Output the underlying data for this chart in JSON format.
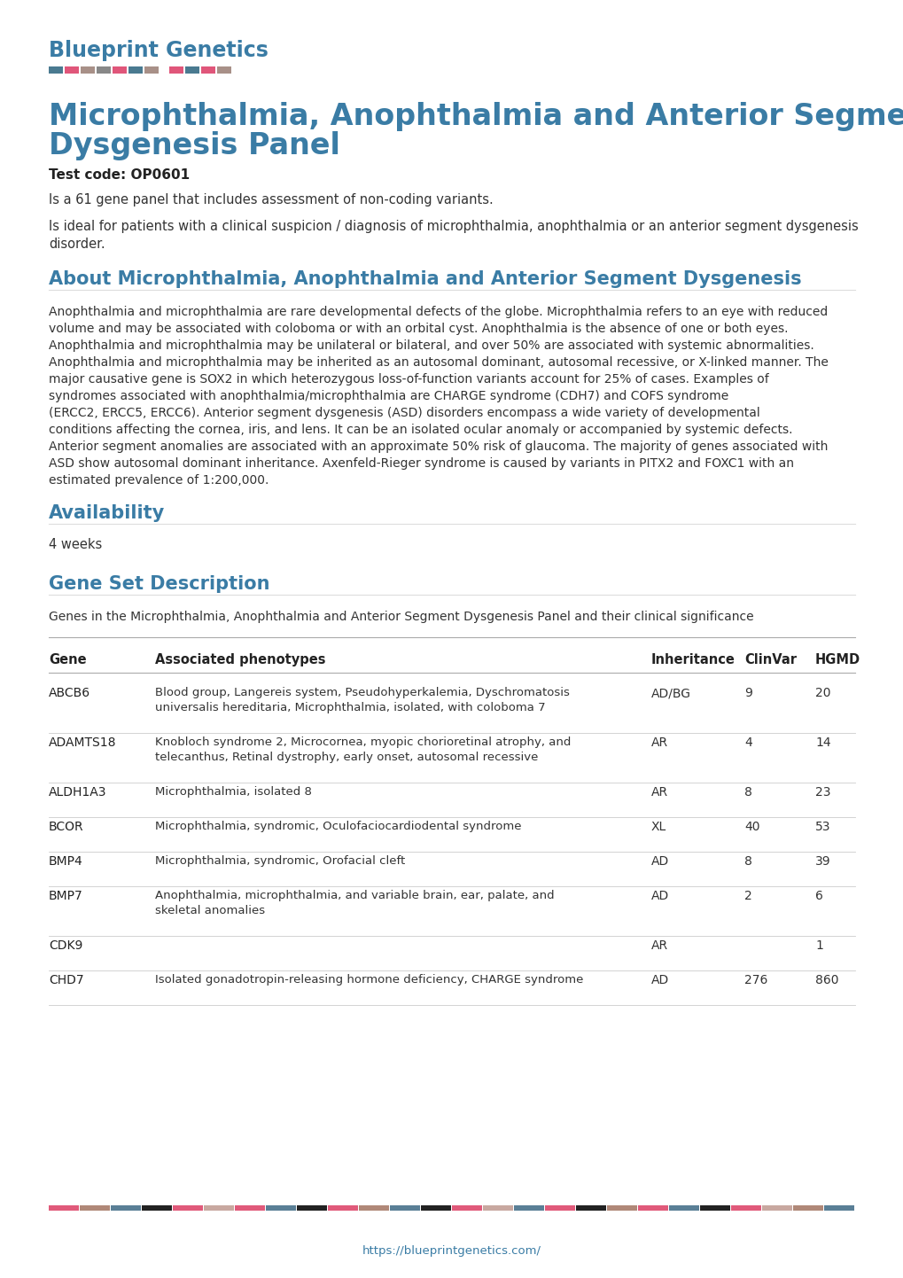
{
  "title_line1": "Microphthalmia, Anophthalmia and Anterior Segment",
  "title_line2": "Dysgenesis Panel",
  "brand": "Blueprint Genetics",
  "brand_color": "#3a7ca5",
  "test_code_label": "Test code: OP0601",
  "desc1": "Is a 61 gene panel that includes assessment of non-coding variants.",
  "desc2a": "Is ideal for patients with a clinical suspicion / diagnosis of microphthalmia, anophthalmia or an anterior segment dysgenesis",
  "desc2b": "disorder.",
  "section1_title": "About Microphthalmia, Anophthalmia and Anterior Segment Dysgenesis",
  "section1_lines": [
    "Anophthalmia and microphthalmia are rare developmental defects of the globe. Microphthalmia refers to an eye with reduced",
    "volume and may be associated with coloboma or with an orbital cyst. Anophthalmia is the absence of one or both eyes.",
    "Anophthalmia and microphthalmia may be unilateral or bilateral, and over 50% are associated with systemic abnormalities.",
    "Anophthalmia and microphthalmia may be inherited as an autosomal dominant, autosomal recessive, or X-linked manner. The",
    "major causative gene is SOX2 in which heterozygous loss-of-function variants account for 25% of cases. Examples of",
    "syndromes associated with anophthalmia/microphthalmia are CHARGE syndrome (CDH7) and COFS syndrome",
    "(ERCC2, ERCC5, ERCC6). Anterior segment dysgenesis (ASD) disorders encompass a wide variety of developmental",
    "conditions affecting the cornea, iris, and lens. It can be an isolated ocular anomaly or accompanied by systemic defects.",
    "Anterior segment anomalies are associated with an approximate 50% risk of glaucoma. The majority of genes associated with",
    "ASD show autosomal dominant inheritance. Axenfeld-Rieger syndrome is caused by variants in PITX2 and FOXC1 with an",
    "estimated prevalence of 1:200,000."
  ],
  "section2_title": "Availability",
  "section2_body": "4 weeks",
  "section3_title": "Gene Set Description",
  "table_intro": "Genes in the Microphthalmia, Anophthalmia and Anterior Segment Dysgenesis Panel and their clinical significance",
  "table_headers": [
    "Gene",
    "Associated phenotypes",
    "Inheritance",
    "ClinVar",
    "HGMD"
  ],
  "table_rows": [
    [
      "ABCB6",
      [
        "Blood group, Langereis system, Pseudohyperkalemia, Dyschromatosis",
        "universalis hereditaria, Microphthalmia, isolated, with coloboma 7"
      ],
      "AD/BG",
      "9",
      "20"
    ],
    [
      "ADAMTS18",
      [
        "Knobloch syndrome 2, Microcornea, myopic chorioretinal atrophy, and",
        "telecanthus, Retinal dystrophy, early onset, autosomal recessive"
      ],
      "AR",
      "4",
      "14"
    ],
    [
      "ALDH1A3",
      [
        "Microphthalmia, isolated 8"
      ],
      "AR",
      "8",
      "23"
    ],
    [
      "BCOR",
      [
        "Microphthalmia, syndromic, Oculofaciocardiodental syndrome"
      ],
      "XL",
      "40",
      "53"
    ],
    [
      "BMP4",
      [
        "Microphthalmia, syndromic, Orofacial cleft"
      ],
      "AD",
      "8",
      "39"
    ],
    [
      "BMP7",
      [
        "Anophthalmia, microphthalmia, and variable brain, ear, palate, and",
        "skeletal anomalies"
      ],
      "AD",
      "2",
      "6"
    ],
    [
      "CDK9",
      [
        ""
      ],
      "AR",
      "",
      "1"
    ],
    [
      "CHD7",
      [
        "Isolated gonadotropin-releasing hormone deficiency, CHARGE syndrome"
      ],
      "AD",
      "276",
      "860"
    ]
  ],
  "footer_url": "https://blueprintgenetics.com/",
  "footer_color": "#3a7ca5",
  "heading_color": "#3a7ca5",
  "body_color": "#333333",
  "dark_color": "#222222",
  "line_color": "#cccccc",
  "bg_color": "#ffffff",
  "top_bar_colors": [
    "#5a7f96",
    "#e05a7a",
    "#b08878",
    "#e05a7a",
    "#5a7f96",
    "#e05a7a",
    "#b08878",
    "#e05a7a",
    "#5a7f96",
    "#e05a7a",
    "#b08878"
  ],
  "bottom_bar_colors": [
    "#e05a7a",
    "#b08878",
    "#5a7f96",
    "#222222",
    "#e05a7a",
    "#c8a8a0",
    "#e05a7a",
    "#5a7f96",
    "#222222",
    "#e05a7a",
    "#b08878",
    "#5a7f96",
    "#222222",
    "#e05a7a",
    "#c8a8a0",
    "#5a7f96",
    "#e05a7a",
    "#222222",
    "#b08878",
    "#e05a7a",
    "#5a7f96",
    "#222222",
    "#e05a7a",
    "#c8a8a0",
    "#b08878",
    "#5a7f96"
  ]
}
